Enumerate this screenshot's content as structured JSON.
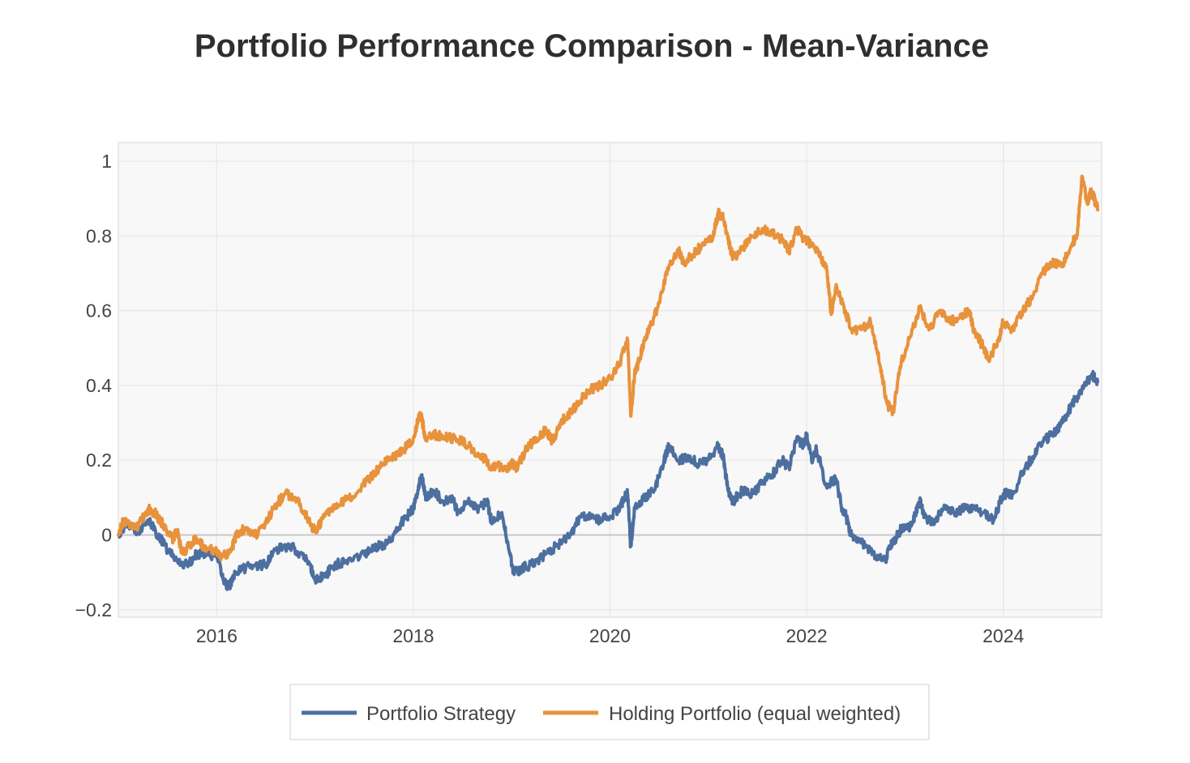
{
  "chart_data": {
    "type": "line",
    "title": "Portfolio Performance Comparison - Mean-Variance",
    "xlabel": "",
    "ylabel": "",
    "x_ticks": [
      "2016",
      "2018",
      "2020",
      "2022",
      "2024"
    ],
    "y_ticks": [
      {
        "value": 1,
        "label": "1"
      },
      {
        "value": 0.8,
        "label": "0.8"
      },
      {
        "value": 0.6,
        "label": "0.6"
      },
      {
        "value": 0.4,
        "label": "0.4"
      },
      {
        "value": 0.2,
        "label": "0.2"
      },
      {
        "value": 0,
        "label": "0"
      },
      {
        "value": -0.2,
        "label": "−0.2"
      }
    ],
    "xlim": [
      2015.0,
      2025.0
    ],
    "ylim": [
      -0.22,
      1.05
    ],
    "grid": true,
    "legend_position": "bottom",
    "colors": {
      "plot_background": "#f8f8f8",
      "grid": "#e6e6e6",
      "zero_line": "#c8c8c8"
    },
    "series": [
      {
        "name": "Portfolio Strategy",
        "color": "#4c6fa0",
        "points": [
          [
            2015.0,
            0.0
          ],
          [
            2015.08,
            0.03
          ],
          [
            2015.2,
            0.01
          ],
          [
            2015.3,
            0.04
          ],
          [
            2015.4,
            0.0
          ],
          [
            2015.5,
            -0.04
          ],
          [
            2015.6,
            -0.07
          ],
          [
            2015.7,
            -0.08
          ],
          [
            2015.8,
            -0.05
          ],
          [
            2015.9,
            -0.05
          ],
          [
            2016.0,
            -0.06
          ],
          [
            2016.07,
            -0.12
          ],
          [
            2016.12,
            -0.14
          ],
          [
            2016.2,
            -0.1
          ],
          [
            2016.35,
            -0.08
          ],
          [
            2016.5,
            -0.08
          ],
          [
            2016.6,
            -0.04
          ],
          [
            2016.75,
            -0.03
          ],
          [
            2016.85,
            -0.05
          ],
          [
            2016.95,
            -0.08
          ],
          [
            2017.0,
            -0.12
          ],
          [
            2017.1,
            -0.11
          ],
          [
            2017.2,
            -0.08
          ],
          [
            2017.3,
            -0.07
          ],
          [
            2017.5,
            -0.05
          ],
          [
            2017.6,
            -0.03
          ],
          [
            2017.7,
            -0.03
          ],
          [
            2017.8,
            0.0
          ],
          [
            2017.9,
            0.04
          ],
          [
            2018.0,
            0.07
          ],
          [
            2018.05,
            0.12
          ],
          [
            2018.08,
            0.16
          ],
          [
            2018.13,
            0.1
          ],
          [
            2018.2,
            0.12
          ],
          [
            2018.3,
            0.09
          ],
          [
            2018.4,
            0.1
          ],
          [
            2018.45,
            0.06
          ],
          [
            2018.55,
            0.09
          ],
          [
            2018.65,
            0.07
          ],
          [
            2018.75,
            0.09
          ],
          [
            2018.8,
            0.03
          ],
          [
            2018.9,
            0.06
          ],
          [
            2018.97,
            -0.04
          ],
          [
            2019.02,
            -0.1
          ],
          [
            2019.1,
            -0.09
          ],
          [
            2019.2,
            -0.08
          ],
          [
            2019.35,
            -0.05
          ],
          [
            2019.5,
            -0.02
          ],
          [
            2019.6,
            0.0
          ],
          [
            2019.7,
            0.05
          ],
          [
            2019.8,
            0.05
          ],
          [
            2019.9,
            0.04
          ],
          [
            2020.0,
            0.05
          ],
          [
            2020.1,
            0.07
          ],
          [
            2020.15,
            0.1
          ],
          [
            2020.18,
            0.11
          ],
          [
            2020.21,
            -0.03
          ],
          [
            2020.25,
            0.07
          ],
          [
            2020.35,
            0.1
          ],
          [
            2020.45,
            0.12
          ],
          [
            2020.55,
            0.2
          ],
          [
            2020.6,
            0.24
          ],
          [
            2020.7,
            0.2
          ],
          [
            2020.8,
            0.21
          ],
          [
            2020.9,
            0.19
          ],
          [
            2021.0,
            0.2
          ],
          [
            2021.1,
            0.24
          ],
          [
            2021.15,
            0.21
          ],
          [
            2021.2,
            0.12
          ],
          [
            2021.25,
            0.09
          ],
          [
            2021.35,
            0.12
          ],
          [
            2021.45,
            0.11
          ],
          [
            2021.55,
            0.14
          ],
          [
            2021.65,
            0.16
          ],
          [
            2021.75,
            0.2
          ],
          [
            2021.82,
            0.18
          ],
          [
            2021.9,
            0.26
          ],
          [
            2021.97,
            0.24
          ],
          [
            2022.0,
            0.27
          ],
          [
            2022.05,
            0.2
          ],
          [
            2022.1,
            0.23
          ],
          [
            2022.2,
            0.13
          ],
          [
            2022.3,
            0.15
          ],
          [
            2022.35,
            0.08
          ],
          [
            2022.4,
            0.05
          ],
          [
            2022.45,
            0.0
          ],
          [
            2022.5,
            -0.01
          ],
          [
            2022.6,
            -0.03
          ],
          [
            2022.7,
            -0.06
          ],
          [
            2022.8,
            -0.07
          ],
          [
            2022.85,
            -0.03
          ],
          [
            2022.9,
            -0.01
          ],
          [
            2022.97,
            0.02
          ],
          [
            2023.05,
            0.02
          ],
          [
            2023.1,
            0.05
          ],
          [
            2023.15,
            0.09
          ],
          [
            2023.2,
            0.05
          ],
          [
            2023.3,
            0.03
          ],
          [
            2023.4,
            0.08
          ],
          [
            2023.5,
            0.06
          ],
          [
            2023.6,
            0.07
          ],
          [
            2023.7,
            0.07
          ],
          [
            2023.8,
            0.06
          ],
          [
            2023.9,
            0.04
          ],
          [
            2024.0,
            0.11
          ],
          [
            2024.1,
            0.11
          ],
          [
            2024.2,
            0.17
          ],
          [
            2024.3,
            0.21
          ],
          [
            2024.4,
            0.25
          ],
          [
            2024.5,
            0.27
          ],
          [
            2024.6,
            0.3
          ],
          [
            2024.7,
            0.35
          ],
          [
            2024.8,
            0.39
          ],
          [
            2024.9,
            0.43
          ],
          [
            2024.96,
            0.41
          ]
        ]
      },
      {
        "name": "Holding Portfolio (equal weighted)",
        "color": "#e8923b",
        "points": [
          [
            2015.0,
            0.0
          ],
          [
            2015.05,
            0.04
          ],
          [
            2015.12,
            0.03
          ],
          [
            2015.2,
            0.02
          ],
          [
            2015.3,
            0.07
          ],
          [
            2015.37,
            0.06
          ],
          [
            2015.45,
            0.03
          ],
          [
            2015.55,
            -0.01
          ],
          [
            2015.6,
            0.01
          ],
          [
            2015.65,
            -0.05
          ],
          [
            2015.75,
            -0.02
          ],
          [
            2015.8,
            -0.01
          ],
          [
            2015.9,
            -0.04
          ],
          [
            2016.0,
            -0.04
          ],
          [
            2016.05,
            -0.06
          ],
          [
            2016.15,
            -0.04
          ],
          [
            2016.2,
            0.0
          ],
          [
            2016.3,
            0.02
          ],
          [
            2016.4,
            0.0
          ],
          [
            2016.5,
            0.03
          ],
          [
            2016.6,
            0.08
          ],
          [
            2016.7,
            0.11
          ],
          [
            2016.8,
            0.1
          ],
          [
            2016.9,
            0.06
          ],
          [
            2016.95,
            0.03
          ],
          [
            2017.0,
            0.01
          ],
          [
            2017.1,
            0.05
          ],
          [
            2017.2,
            0.07
          ],
          [
            2017.3,
            0.09
          ],
          [
            2017.45,
            0.12
          ],
          [
            2017.55,
            0.15
          ],
          [
            2017.65,
            0.18
          ],
          [
            2017.75,
            0.2
          ],
          [
            2017.85,
            0.22
          ],
          [
            2017.95,
            0.24
          ],
          [
            2018.0,
            0.26
          ],
          [
            2018.05,
            0.31
          ],
          [
            2018.08,
            0.32
          ],
          [
            2018.12,
            0.26
          ],
          [
            2018.2,
            0.27
          ],
          [
            2018.3,
            0.26
          ],
          [
            2018.4,
            0.26
          ],
          [
            2018.5,
            0.25
          ],
          [
            2018.6,
            0.23
          ],
          [
            2018.7,
            0.21
          ],
          [
            2018.8,
            0.18
          ],
          [
            2018.85,
            0.19
          ],
          [
            2018.95,
            0.17
          ],
          [
            2019.0,
            0.19
          ],
          [
            2019.05,
            0.18
          ],
          [
            2019.15,
            0.23
          ],
          [
            2019.25,
            0.26
          ],
          [
            2019.35,
            0.28
          ],
          [
            2019.42,
            0.25
          ],
          [
            2019.5,
            0.3
          ],
          [
            2019.6,
            0.33
          ],
          [
            2019.7,
            0.36
          ],
          [
            2019.8,
            0.39
          ],
          [
            2019.9,
            0.4
          ],
          [
            2020.0,
            0.42
          ],
          [
            2020.1,
            0.46
          ],
          [
            2020.15,
            0.5
          ],
          [
            2020.18,
            0.52
          ],
          [
            2020.21,
            0.32
          ],
          [
            2020.25,
            0.43
          ],
          [
            2020.3,
            0.47
          ],
          [
            2020.35,
            0.52
          ],
          [
            2020.4,
            0.55
          ],
          [
            2020.5,
            0.62
          ],
          [
            2020.6,
            0.72
          ],
          [
            2020.7,
            0.76
          ],
          [
            2020.75,
            0.73
          ],
          [
            2020.85,
            0.75
          ],
          [
            2020.95,
            0.78
          ],
          [
            2021.05,
            0.8
          ],
          [
            2021.1,
            0.86
          ],
          [
            2021.15,
            0.85
          ],
          [
            2021.2,
            0.79
          ],
          [
            2021.25,
            0.74
          ],
          [
            2021.35,
            0.77
          ],
          [
            2021.45,
            0.8
          ],
          [
            2021.55,
            0.82
          ],
          [
            2021.65,
            0.81
          ],
          [
            2021.75,
            0.79
          ],
          [
            2021.82,
            0.76
          ],
          [
            2021.9,
            0.82
          ],
          [
            2021.97,
            0.79
          ],
          [
            2022.05,
            0.78
          ],
          [
            2022.15,
            0.74
          ],
          [
            2022.2,
            0.72
          ],
          [
            2022.25,
            0.59
          ],
          [
            2022.3,
            0.67
          ],
          [
            2022.38,
            0.61
          ],
          [
            2022.45,
            0.55
          ],
          [
            2022.55,
            0.55
          ],
          [
            2022.65,
            0.57
          ],
          [
            2022.75,
            0.45
          ],
          [
            2022.82,
            0.35
          ],
          [
            2022.88,
            0.33
          ],
          [
            2022.95,
            0.45
          ],
          [
            2023.05,
            0.53
          ],
          [
            2023.15,
            0.61
          ],
          [
            2023.25,
            0.55
          ],
          [
            2023.35,
            0.6
          ],
          [
            2023.45,
            0.57
          ],
          [
            2023.55,
            0.58
          ],
          [
            2023.65,
            0.6
          ],
          [
            2023.7,
            0.55
          ],
          [
            2023.8,
            0.5
          ],
          [
            2023.85,
            0.47
          ],
          [
            2023.95,
            0.52
          ],
          [
            2024.0,
            0.57
          ],
          [
            2024.1,
            0.55
          ],
          [
            2024.2,
            0.6
          ],
          [
            2024.3,
            0.64
          ],
          [
            2024.4,
            0.7
          ],
          [
            2024.5,
            0.73
          ],
          [
            2024.6,
            0.72
          ],
          [
            2024.7,
            0.78
          ],
          [
            2024.75,
            0.8
          ],
          [
            2024.8,
            0.96
          ],
          [
            2024.85,
            0.89
          ],
          [
            2024.9,
            0.92
          ],
          [
            2024.96,
            0.87
          ]
        ]
      }
    ]
  }
}
